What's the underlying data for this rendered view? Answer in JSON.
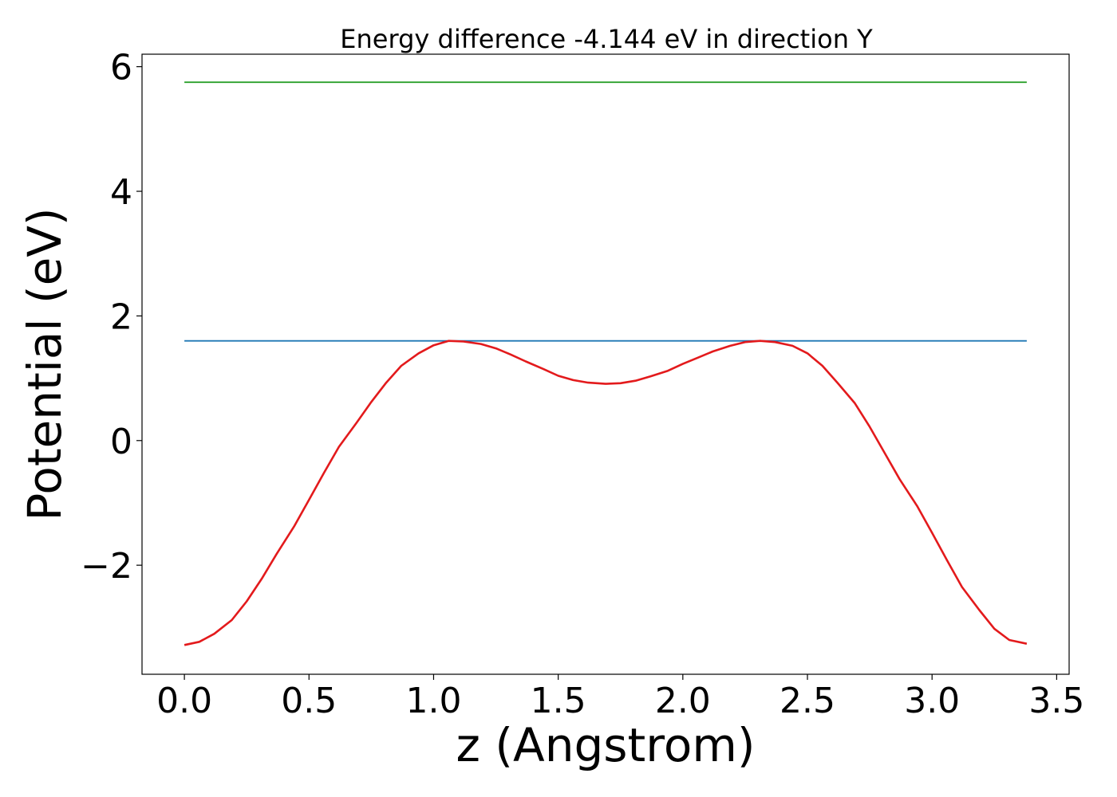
{
  "chart_data": {
    "type": "line",
    "title": "Energy difference -4.144 eV in direction Y",
    "xlabel": "z (Angstrom)",
    "ylabel": "Potential (eV)",
    "xlim": [
      -0.17,
      3.55
    ],
    "ylim": [
      -3.75,
      6.2
    ],
    "xticks": [
      0.0,
      0.5,
      1.0,
      1.5,
      2.0,
      2.5,
      3.0,
      3.5
    ],
    "xtick_labels": [
      "0.0",
      "0.5",
      "1.0",
      "1.5",
      "2.0",
      "2.5",
      "3.0",
      "3.5"
    ],
    "yticks": [
      -2,
      0,
      2,
      4,
      6
    ],
    "ytick_labels": [
      "−2",
      "0",
      "2",
      "4",
      "6"
    ],
    "grid": false,
    "series": [
      {
        "color": "#2ca02c",
        "x": [
          0.0,
          3.38
        ],
        "y": [
          5.75,
          5.75
        ]
      },
      {
        "color": "#1f77b4",
        "x": [
          0.0,
          3.38
        ],
        "y": [
          1.6,
          1.6
        ]
      },
      {
        "color": "#e31a1c",
        "x": [
          0.0,
          0.06,
          0.12,
          0.19,
          0.25,
          0.31,
          0.37,
          0.44,
          0.5,
          0.56,
          0.62,
          0.69,
          0.75,
          0.81,
          0.87,
          0.94,
          1.0,
          1.06,
          1.12,
          1.19,
          1.25,
          1.31,
          1.37,
          1.44,
          1.5,
          1.56,
          1.62,
          1.69,
          1.75,
          1.81,
          1.87,
          1.94,
          2.0,
          2.06,
          2.12,
          2.19,
          2.25,
          2.31,
          2.37,
          2.44,
          2.5,
          2.56,
          2.62,
          2.69,
          2.75,
          2.81,
          2.87,
          2.94,
          3.0,
          3.06,
          3.12,
          3.19,
          3.25,
          3.31,
          3.38
        ],
        "y": [
          -3.28,
          -3.23,
          -3.1,
          -2.88,
          -2.58,
          -2.22,
          -1.82,
          -1.38,
          -0.95,
          -0.52,
          -0.1,
          0.28,
          0.62,
          0.93,
          1.2,
          1.4,
          1.53,
          1.6,
          1.59,
          1.55,
          1.48,
          1.38,
          1.27,
          1.15,
          1.04,
          0.97,
          0.93,
          0.91,
          0.92,
          0.96,
          1.03,
          1.12,
          1.23,
          1.33,
          1.43,
          1.52,
          1.58,
          1.6,
          1.58,
          1.52,
          1.4,
          1.2,
          0.93,
          0.6,
          0.22,
          -0.2,
          -0.62,
          -1.05,
          -1.48,
          -1.92,
          -2.35,
          -2.72,
          -3.02,
          -3.2,
          -3.26
        ]
      }
    ]
  }
}
